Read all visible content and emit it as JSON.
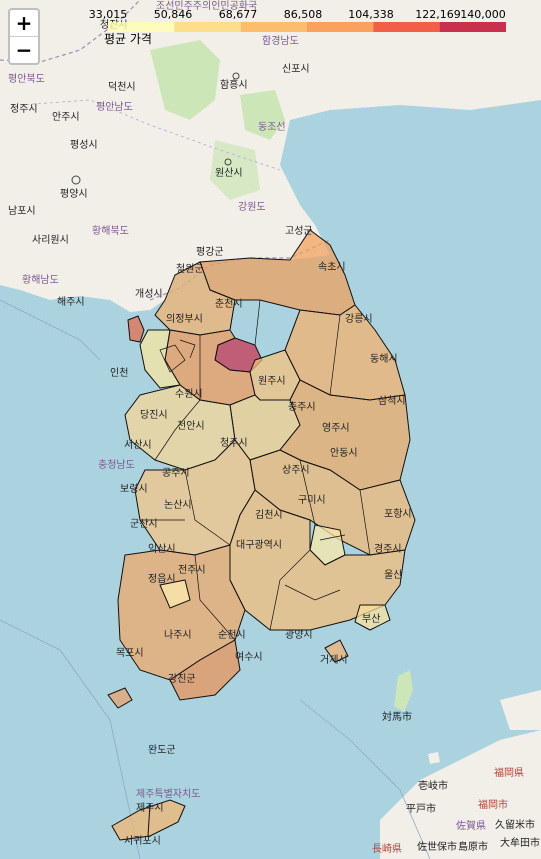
{
  "legend": {
    "title": "평균 가격",
    "ticks": [
      "33,015",
      "50,846",
      "68,677",
      "86,508",
      "104,338",
      "122,169",
      "140,000"
    ],
    "colors": [
      "#ffffb2",
      "#fed976",
      "#feb24c",
      "#fd8d3c",
      "#f03b20",
      "#bd0026"
    ]
  },
  "zoom": {
    "in": "+",
    "out": "−"
  },
  "labels": {
    "cities": [
      "청진시",
      "함흥시",
      "신포시",
      "덕천시",
      "정주시",
      "안주시",
      "평성시",
      "평양시",
      "원산시",
      "남포시",
      "사리원시",
      "평강군",
      "철원군",
      "고성군",
      "해주시",
      "개성시",
      "속초시",
      "의정부시",
      "춘천시",
      "강릉시",
      "인천",
      "수원시",
      "원주시",
      "동해시",
      "천안시",
      "충주시",
      "영주시",
      "삼척시",
      "당진시",
      "서산시",
      "안동시",
      "청주시",
      "보령시",
      "상주시",
      "공주시",
      "구미시",
      "포항시",
      "논산시",
      "김천시",
      "군산시",
      "대구광역시",
      "경주시",
      "익산시",
      "전주시",
      "정읍시",
      "울산",
      "부산",
      "나주시",
      "순천시",
      "광양시",
      "거제시",
      "목포시",
      "여수시",
      "강진군",
      "완도군",
      "서귀포시",
      "제주시"
    ],
    "provinces": [
      "조선민주주의인민공화국",
      "평안북도",
      "평안남도",
      "함경남도",
      "동조선",
      "강원도",
      "황해북도",
      "황해남도",
      "충청남도",
      "제주특별자치도"
    ],
    "japan": [
      "対馬市",
      "壱岐市",
      "福岡県",
      "福岡市",
      "佐賀県",
      "久留米市",
      "平戸市",
      "長崎県",
      "佐世保市",
      "島原市",
      "大牟田市"
    ]
  }
}
